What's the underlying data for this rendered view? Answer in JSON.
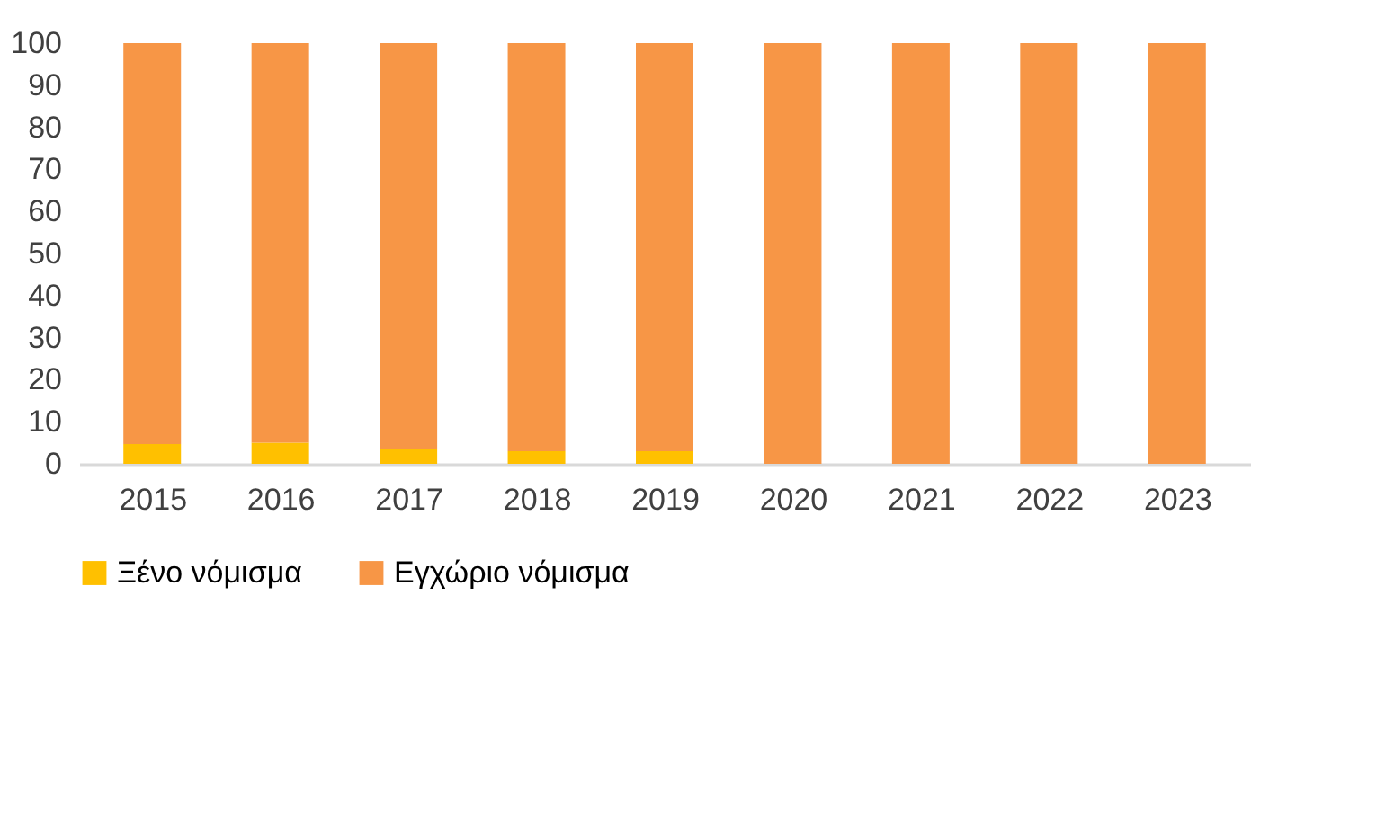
{
  "chart_data": {
    "type": "bar",
    "stacked": true,
    "categories": [
      "2015",
      "2016",
      "2017",
      "2018",
      "2019",
      "2020",
      "2021",
      "2022",
      "2023"
    ],
    "series": [
      {
        "name": "Ξένο νόμισμα",
        "color": "#ffc000",
        "values": [
          4.7,
          5.0,
          3.6,
          3.0,
          3.0,
          0,
          0,
          0,
          0
        ]
      },
      {
        "name": "Εγχώριο νόμισμα",
        "color": "#f79646",
        "values": [
          95.3,
          95.0,
          96.4,
          97.0,
          97.0,
          100,
          100,
          100,
          100
        ]
      }
    ],
    "ylim": [
      0,
      100
    ],
    "yticks": [
      0,
      10,
      20,
      30,
      40,
      50,
      60,
      70,
      80,
      90,
      100
    ],
    "grid": false,
    "legend": "bottom"
  }
}
